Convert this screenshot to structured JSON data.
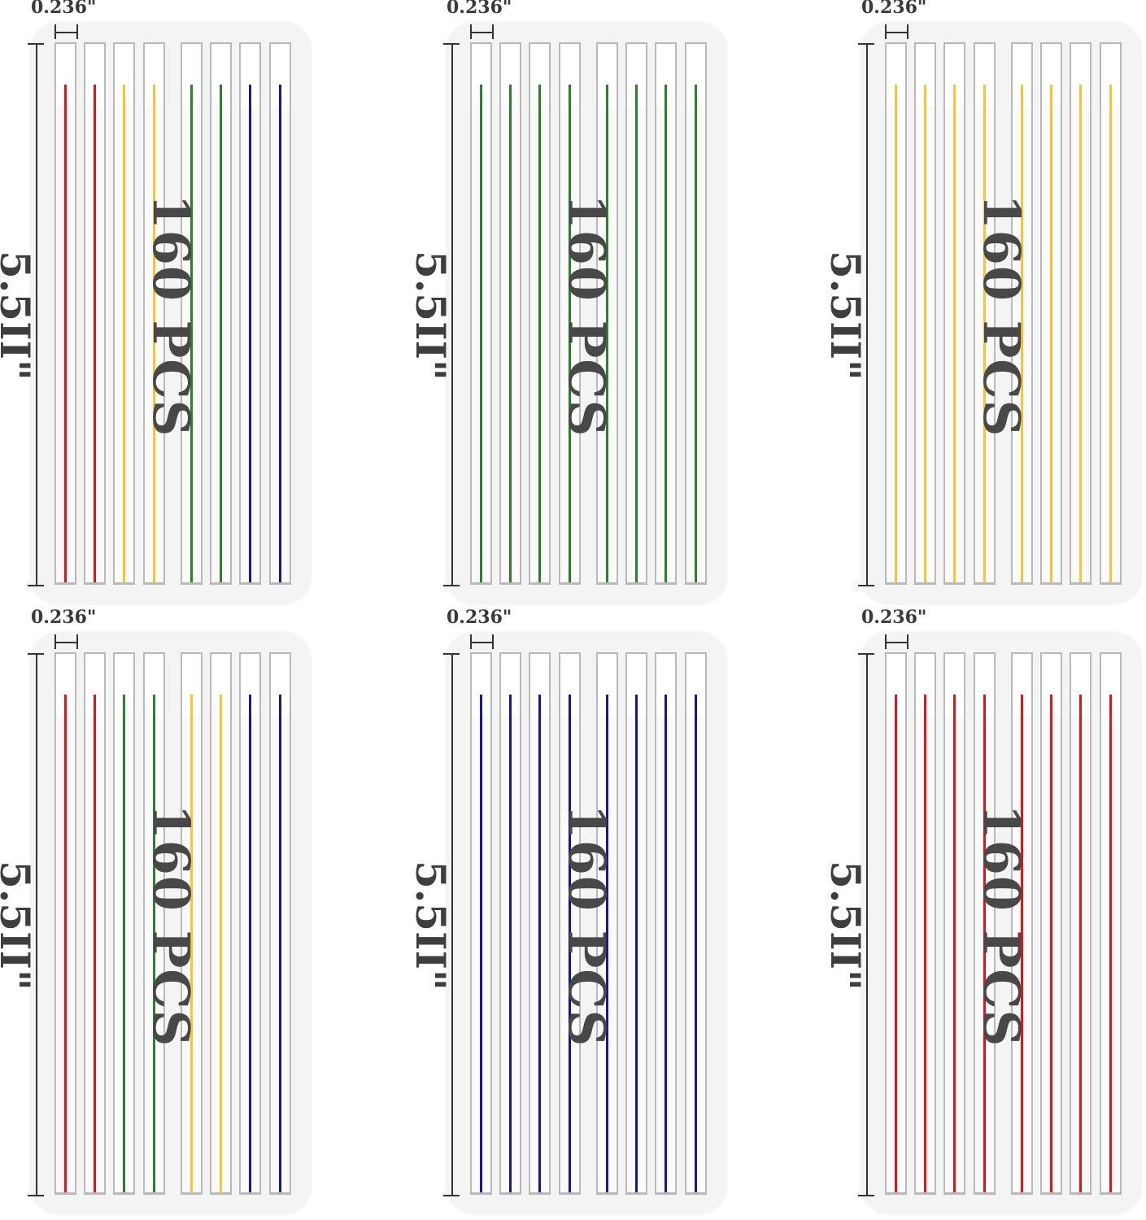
{
  "width_label": "0.236\"",
  "height_label": "5.5II\"",
  "count_label": "160 PCS",
  "colors": {
    "red": "#e2141a",
    "yellow": "#f7c531",
    "green": "#2e7d32",
    "blue": "#16169a"
  },
  "panels": [
    {
      "strips": [
        "red",
        "red",
        "yellow",
        "yellow",
        "green",
        "green",
        "blue",
        "blue"
      ]
    },
    {
      "strips": [
        "green",
        "green",
        "green",
        "green",
        "green",
        "green",
        "green",
        "green"
      ]
    },
    {
      "strips": [
        "yellow",
        "yellow",
        "yellow",
        "yellow",
        "yellow",
        "yellow",
        "yellow",
        "yellow"
      ]
    },
    {
      "strips": [
        "red",
        "red",
        "green",
        "green",
        "yellow",
        "yellow",
        "blue",
        "blue"
      ]
    },
    {
      "strips": [
        "blue",
        "blue",
        "blue",
        "blue",
        "blue",
        "blue",
        "blue",
        "blue"
      ]
    },
    {
      "strips": [
        "red",
        "red",
        "red",
        "red",
        "red",
        "red",
        "red",
        "red"
      ]
    }
  ]
}
